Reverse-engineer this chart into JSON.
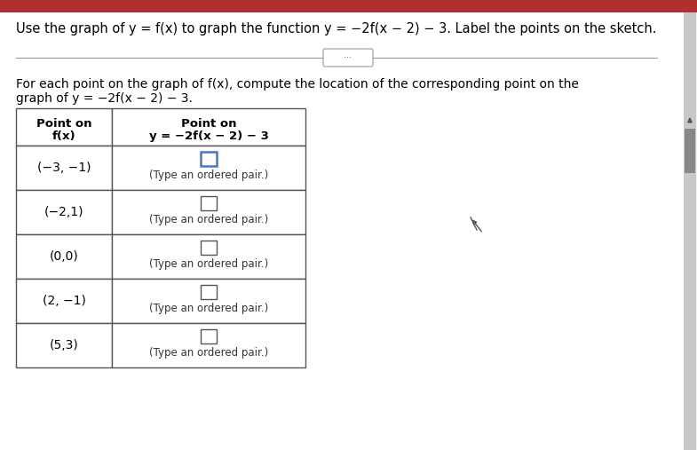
{
  "title": "Use the graph of y = f(x) to graph the function y = −2f(x − 2) − 3. Label the points on the sketch.",
  "subtitle1": "For each point on the graph of f(x), compute the location of the corresponding point on the",
  "subtitle2": "graph of y = −2f(x − 2) − 3.",
  "col1_header_line1": "Point on",
  "col1_header_line2": "f(x)",
  "col2_header_line1": "Point on",
  "col2_header_line2": "y = −2f(x − 2) − 3",
  "rows": [
    {
      "fx": "(−3, −1)"
    },
    {
      "fx": "(−2,1)"
    },
    {
      "fx": "(0,0)"
    },
    {
      "fx": "(2, −1)"
    },
    {
      "fx": "(5,3)"
    }
  ],
  "type_label": "(Type an ordered pair.)",
  "bg_color": "#f0f0f0",
  "white": "#ffffff",
  "table_border_color": "#555555",
  "title_color": "#000000",
  "text_color": "#000000",
  "input_box_color": "#4477cc",
  "scrollbar_track": "#c8c8c8",
  "scrollbar_thumb": "#888888",
  "top_bar_color": "#b03030",
  "sep_line_color": "#999999",
  "cursor_color": "#555555"
}
